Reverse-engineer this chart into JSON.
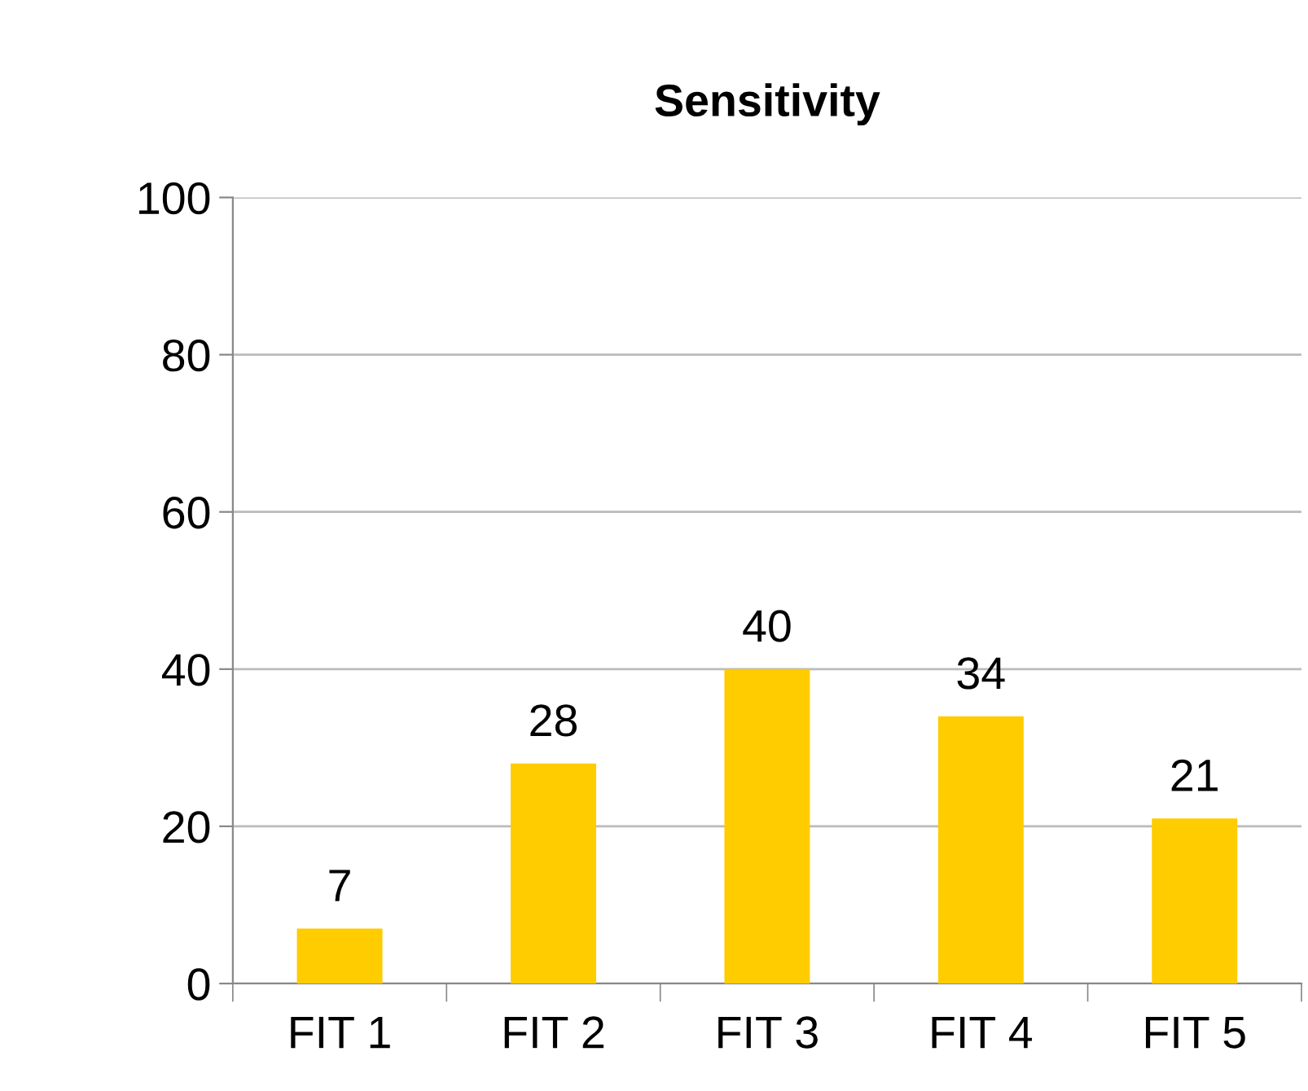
{
  "chart_data": {
    "type": "bar",
    "title": "Sensitivity",
    "categories": [
      "FIT 1",
      "FIT 2",
      "FIT 3",
      "FIT 4",
      "FIT 5"
    ],
    "values": [
      7,
      28,
      40,
      34,
      21
    ],
    "color": "#ffcc00",
    "ylim": [
      0,
      100
    ],
    "yticks": [
      0,
      20,
      40,
      60,
      80,
      100
    ],
    "grid": "y",
    "data_labels": true,
    "legend": false
  }
}
